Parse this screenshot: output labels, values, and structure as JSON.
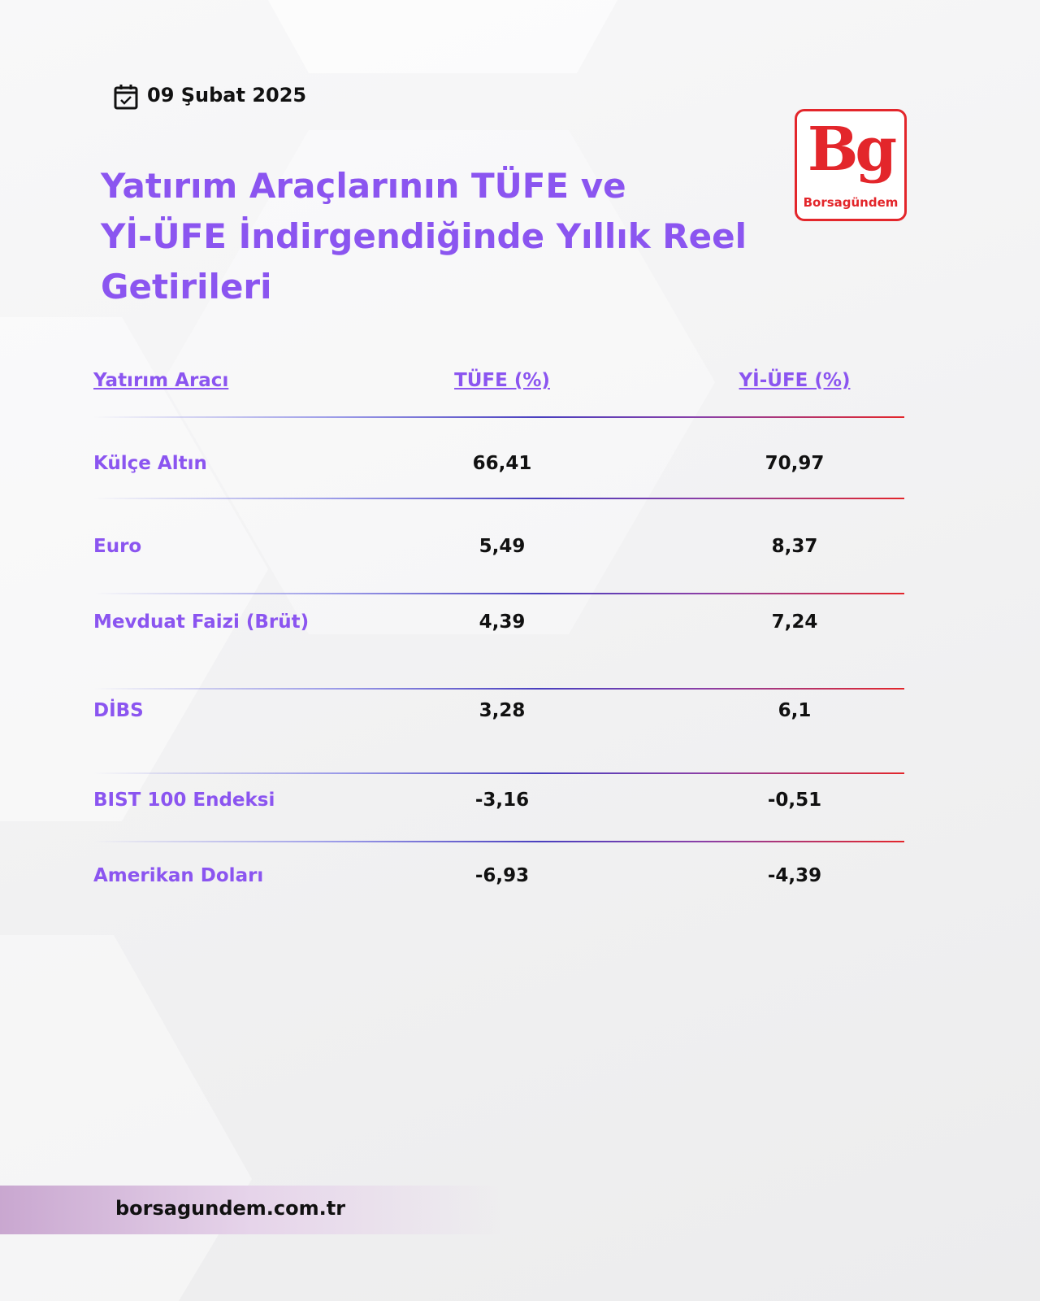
{
  "header": {
    "date": "09 Şubat 2025",
    "title_lines": [
      "Yatırım Araçlarının TÜFE ve",
      "Yİ-ÜFE İndirgendiğinde Yıllık Reel",
      "Getirileri"
    ],
    "logo": {
      "mark": "Bg",
      "name": "Borsagündem"
    }
  },
  "table": {
    "columns": [
      "Yatırım Aracı",
      "TÜFE (%)",
      "Yİ-ÜFE (%)"
    ],
    "rows": [
      [
        "Külçe Altın",
        "66,41",
        "70,97"
      ],
      [
        "Euro",
        "5,49",
        "8,37"
      ],
      [
        "Mevduat Faizi (Brüt)",
        "4,39",
        "7,24"
      ],
      [
        "DİBS",
        "3,28",
        "6,1"
      ],
      [
        "BIST 100 Endeksi",
        "-3,16",
        "-0,51"
      ],
      [
        "Amerikan Doları",
        "-6,93",
        "-4,39"
      ]
    ]
  },
  "footer": {
    "url": "borsagundem.com.tr"
  }
}
